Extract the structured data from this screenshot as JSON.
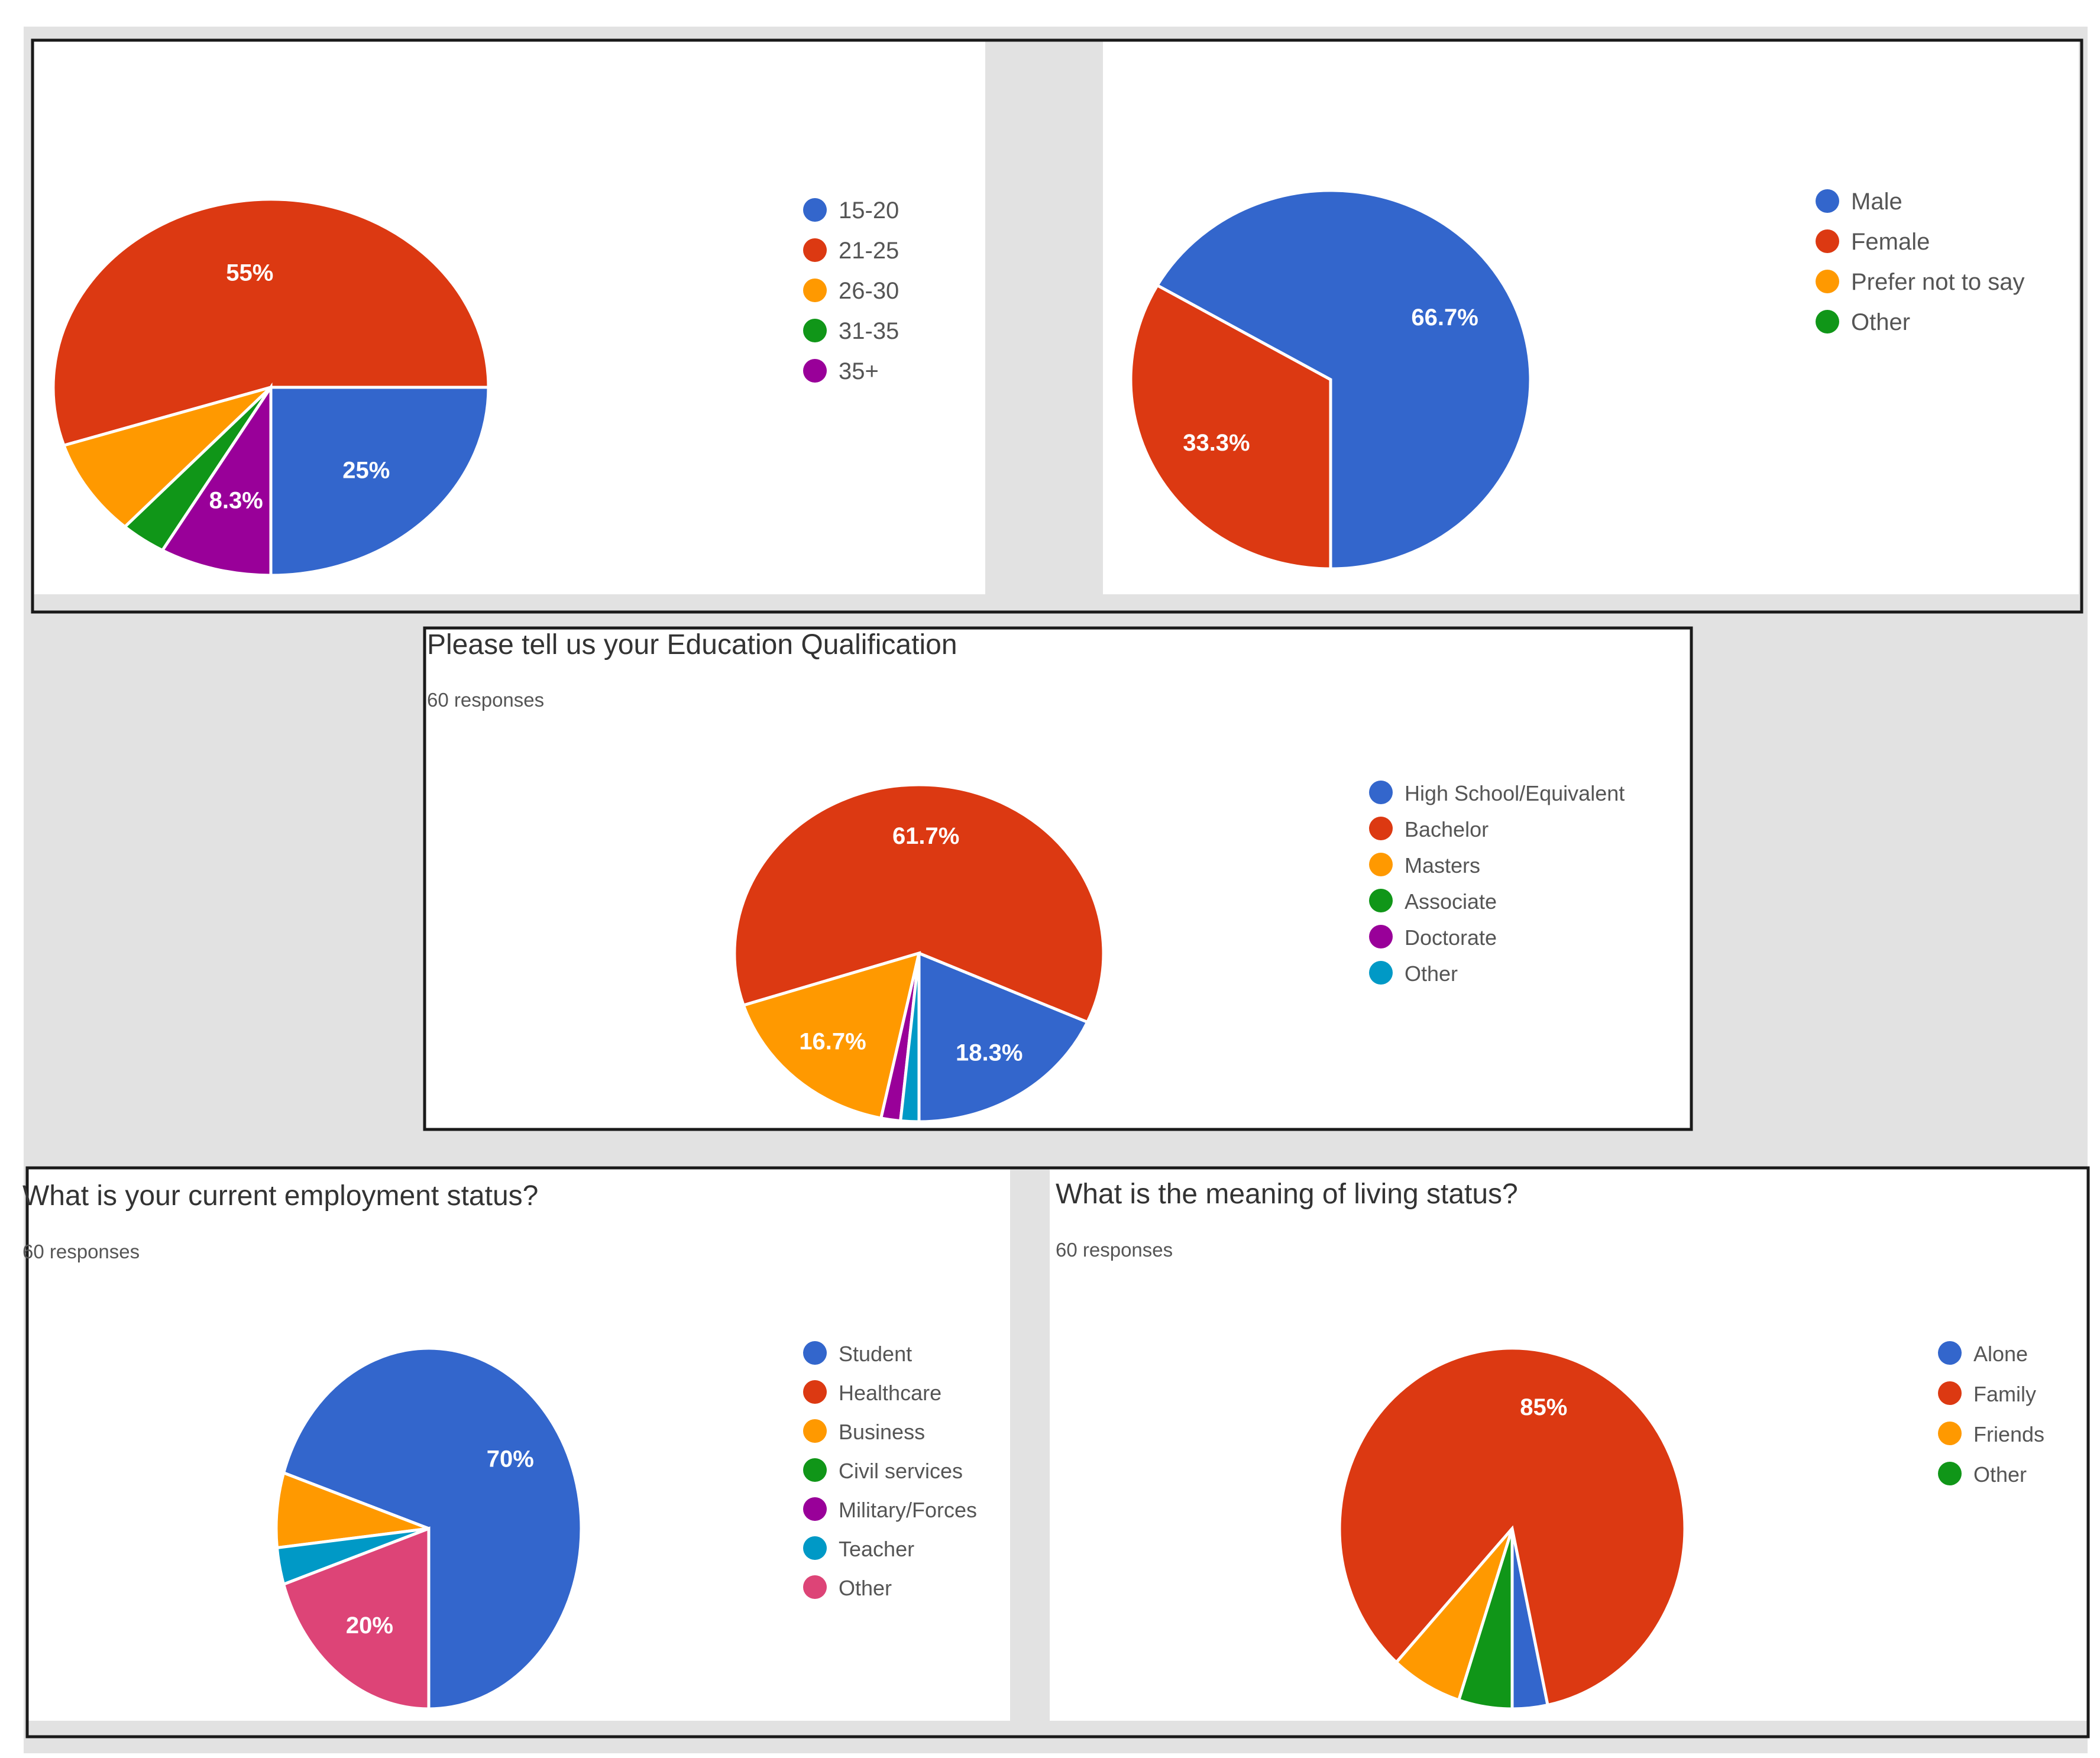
{
  "colors": {
    "blue": "#3366cc",
    "red": "#dc3912",
    "orange": "#ff9900",
    "green": "#109618",
    "purple": "#990099",
    "teal": "#0099c6",
    "pink": "#dd4477"
  },
  "chart_data": [
    {
      "type": "pie",
      "title": "",
      "subtitle": "",
      "legend_position": "right",
      "categories": [
        "15-20",
        "21-25",
        "26-30",
        "31-35",
        "35+"
      ],
      "values": [
        25,
        55,
        8.3,
        3.4,
        8.3
      ],
      "labels": [
        "25%",
        "55%",
        "",
        "",
        "8.3%"
      ],
      "colors": [
        "#3366cc",
        "#dc3912",
        "#ff9900",
        "#109618",
        "#990099"
      ]
    },
    {
      "type": "pie",
      "title": "",
      "subtitle": "",
      "legend_position": "right",
      "categories": [
        "Male",
        "Female",
        "Prefer not to say",
        "Other"
      ],
      "values": [
        66.7,
        33.3,
        0,
        0
      ],
      "labels": [
        "66.7%",
        "33.3%",
        "",
        ""
      ],
      "colors": [
        "#3366cc",
        "#dc3912",
        "#ff9900",
        "#109618"
      ]
    },
    {
      "type": "pie",
      "title": "Please tell us your Education Qualification",
      "subtitle": "60 responses",
      "legend_position": "right",
      "categories": [
        "High School/Equivalent",
        "Bachelor",
        "Masters",
        "Associate",
        "Doctorate",
        "Other"
      ],
      "values": [
        18.3,
        61.7,
        16.7,
        0,
        1.7,
        1.6
      ],
      "labels": [
        "18.3%",
        "61.7%",
        "16.7%",
        "",
        "",
        ""
      ],
      "colors": [
        "#3366cc",
        "#dc3912",
        "#ff9900",
        "#109618",
        "#990099",
        "#0099c6"
      ]
    },
    {
      "type": "pie",
      "title": "What is your current employment status?",
      "subtitle": "60 responses",
      "legend_position": "right",
      "categories": [
        "Student",
        "Healthcare",
        "Business",
        "Civil services",
        "Military/Forces",
        "Teacher",
        "Other"
      ],
      "values": [
        70,
        0,
        6.7,
        0,
        0,
        3.3,
        20
      ],
      "labels": [
        "70%",
        "",
        "",
        "",
        "",
        "",
        "20%"
      ],
      "colors": [
        "#3366cc",
        "#dc3912",
        "#ff9900",
        "#109618",
        "#990099",
        "#0099c6",
        "#dd4477"
      ]
    },
    {
      "type": "pie",
      "title": "What is the meaning of living status?",
      "subtitle": "60 responses",
      "legend_position": "right",
      "categories": [
        "Alone",
        "Family",
        "Friends",
        "Other"
      ],
      "values": [
        3.3,
        85,
        6.7,
        5
      ],
      "labels": [
        "",
        "85%",
        "",
        ""
      ],
      "colors": [
        "#3366cc",
        "#dc3912",
        "#ff9900",
        "#109618"
      ]
    }
  ]
}
